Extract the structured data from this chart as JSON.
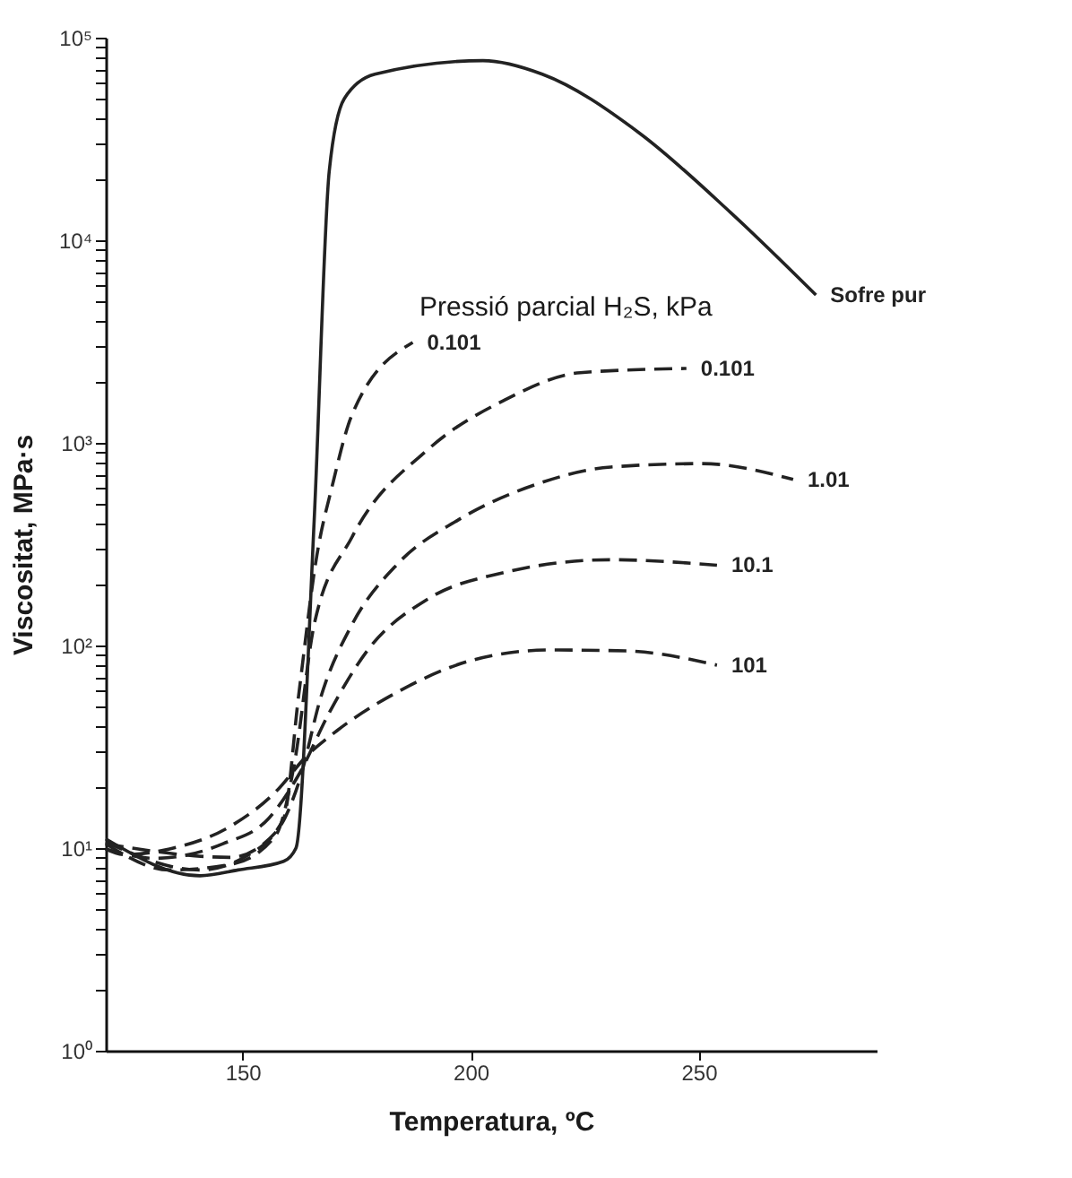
{
  "chart_data": {
    "type": "line",
    "xlabel": "Temperatura, ºC",
    "ylabel": "Viscositat, MPa·s",
    "legend_title": "Pressió parcial H₂S, kPa",
    "log": "y",
    "grid": false,
    "marker": "none",
    "xlim": [
      120,
      289
    ],
    "xticks": [
      150,
      200,
      250
    ],
    "ylim": [
      1,
      100000
    ],
    "yticks": [
      {
        "value": 1,
        "label": "10⁰"
      },
      {
        "value": 2,
        "label": null
      },
      {
        "value": 3,
        "label": null
      },
      {
        "value": 4,
        "label": null
      },
      {
        "value": 5,
        "label": null
      },
      {
        "value": 6,
        "label": null
      },
      {
        "value": 7,
        "label": null
      },
      {
        "value": 8,
        "label": null
      },
      {
        "value": 9,
        "label": null
      },
      {
        "value": 10,
        "label": "10¹"
      },
      {
        "value": 20,
        "label": null
      },
      {
        "value": 30,
        "label": null
      },
      {
        "value": 40,
        "label": null
      },
      {
        "value": 50,
        "label": null
      },
      {
        "value": 60,
        "label": null
      },
      {
        "value": 70,
        "label": null
      },
      {
        "value": 80,
        "label": null
      },
      {
        "value": 90,
        "label": null
      },
      {
        "value": 100,
        "label": "10²"
      },
      {
        "value": 200,
        "label": null
      },
      {
        "value": 300,
        "label": null
      },
      {
        "value": 400,
        "label": null
      },
      {
        "value": 500,
        "label": null
      },
      {
        "value": 600,
        "label": null
      },
      {
        "value": 700,
        "label": null
      },
      {
        "value": 800,
        "label": null
      },
      {
        "value": 900,
        "label": null
      },
      {
        "value": 1000,
        "label": "10³"
      },
      {
        "value": 2000,
        "label": null
      },
      {
        "value": 3000,
        "label": null
      },
      {
        "value": 4000,
        "label": null
      },
      {
        "value": 5000,
        "label": null
      },
      {
        "value": 6000,
        "label": null
      },
      {
        "value": 7000,
        "label": null
      },
      {
        "value": 8000,
        "label": null
      },
      {
        "value": 9000,
        "label": null
      },
      {
        "value": 10000,
        "label": "10⁴"
      },
      {
        "value": 20000,
        "label": null
      },
      {
        "value": 30000,
        "label": null
      },
      {
        "value": 40000,
        "label": null
      },
      {
        "value": 50000,
        "label": null
      },
      {
        "value": 60000,
        "label": null
      },
      {
        "value": 70000,
        "label": null
      },
      {
        "value": 80000,
        "label": null
      },
      {
        "value": 90000,
        "label": null
      },
      {
        "value": 100000,
        "label": "10⁵"
      }
    ],
    "series": [
      {
        "name": "Sofre pur",
        "color": "#222222",
        "line_style": "solid",
        "x": [
          120,
          140.7,
          149,
          159,
          161.7,
          165.7,
          169,
          172.3,
          179,
          202.7,
          215.7,
          237,
          257,
          275.7
        ],
        "values": [
          11.1,
          7.3,
          7.8,
          8.6,
          10,
          418,
          22000,
          50000,
          66000,
          77000,
          66000,
          33800,
          13700,
          5370
        ]
      },
      {
        "name": "0.101",
        "color": "#222222",
        "line_style": "dashed",
        "x": [
          120,
          140.7,
          150.7,
          159,
          162.3,
          166.3,
          169.7,
          174,
          187.3
        ],
        "values": [
          10.7,
          7.8,
          9.1,
          14,
          57,
          280,
          620,
          1380,
          3130
        ]
      },
      {
        "name": "0.101",
        "color": "#222222",
        "line_style": "dashed",
        "x": [
          120,
          134,
          147.3,
          157.3,
          161.3,
          165.7,
          174,
          190.7,
          207.3,
          224,
          247.3
        ],
        "values": [
          10.5,
          7.8,
          8.3,
          11.6,
          25.7,
          127,
          343,
          930,
          1620,
          2220,
          2330
        ]
      },
      {
        "name": "1.01",
        "color": "#222222",
        "line_style": "dashed",
        "x": [
          120,
          147.3,
          157.3,
          162.3,
          167.3,
          174,
          184,
          197.3,
          214,
          230.7,
          250.7,
          270.7
        ],
        "values": [
          10.5,
          9,
          12,
          21,
          57,
          127,
          253,
          417,
          620,
          760,
          790,
          660
        ]
      },
      {
        "name": "10.1",
        "color": "#222222",
        "line_style": "dashed",
        "x": [
          120,
          130.7,
          145.7,
          155.7,
          162.3,
          169,
          177.3,
          190.7,
          207.3,
          230.7,
          254
        ],
        "values": [
          9.9,
          8.9,
          10.5,
          14,
          23,
          46.6,
          94,
          170,
          229,
          265,
          249
        ]
      },
      {
        "name": "101",
        "color": "#222222",
        "line_style": "dashed",
        "x": [
          120,
          124,
          134,
          147.3,
          157.3,
          164,
          170.7,
          184,
          200.7,
          217.3,
          234,
          254
        ],
        "values": [
          9.9,
          9.3,
          9.9,
          12.8,
          19,
          28.4,
          38,
          59,
          85,
          95,
          94,
          80
        ]
      }
    ]
  }
}
